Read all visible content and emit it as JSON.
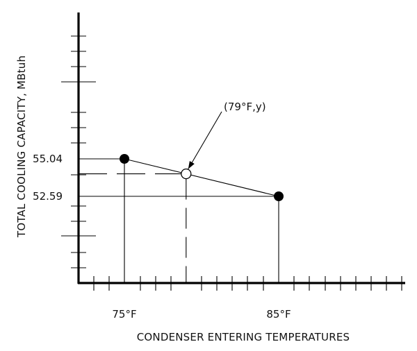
{
  "chart_data": {
    "type": "line",
    "xlabel": "CONDENSER ENTERING TEMPERATURES",
    "ylabel": "TOTAL COOLING CAPACITY, MBtuh",
    "x_tick_labels": [
      {
        "value": 75,
        "label": "75°F"
      },
      {
        "value": 85,
        "label": "85°F"
      }
    ],
    "y_tick_labels": [
      {
        "value": 55.04,
        "label": "55.04"
      },
      {
        "value": 52.59,
        "label": "52.59"
      }
    ],
    "points": [
      {
        "x": 75,
        "y": 55.04,
        "style": "filled"
      },
      {
        "x": 85,
        "y": 52.59,
        "style": "filled"
      }
    ],
    "interpolated_point": {
      "x": 79,
      "y": 54.06,
      "style": "open"
    },
    "annotation": "(79°F,y)"
  }
}
